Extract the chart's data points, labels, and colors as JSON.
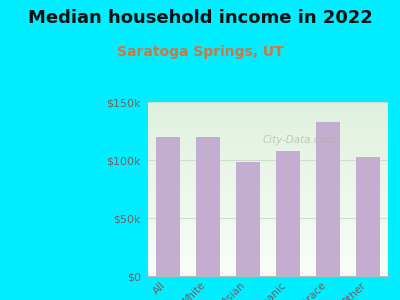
{
  "title": "Median household income in 2022",
  "subtitle": "Saratoga Springs, UT",
  "categories": [
    "All",
    "White",
    "Asian",
    "Hispanic",
    "Multirace",
    "Other"
  ],
  "values": [
    120000,
    120000,
    98000,
    108000,
    133000,
    103000
  ],
  "bar_color": "#c4aed0",
  "background_color": "#00eeff",
  "plot_bg_top": "#dff0dd",
  "plot_bg_bottom": "#f8fdf8",
  "yticks": [
    0,
    50000,
    100000,
    150000
  ],
  "ytick_labels": [
    "$0",
    "$50k",
    "$100k",
    "$150k"
  ],
  "title_fontsize": 13,
  "subtitle_fontsize": 10,
  "tick_color": "#7a5c5c",
  "grid_color": "#ccddcc",
  "watermark": "City-Data.com",
  "ylim": 150000
}
